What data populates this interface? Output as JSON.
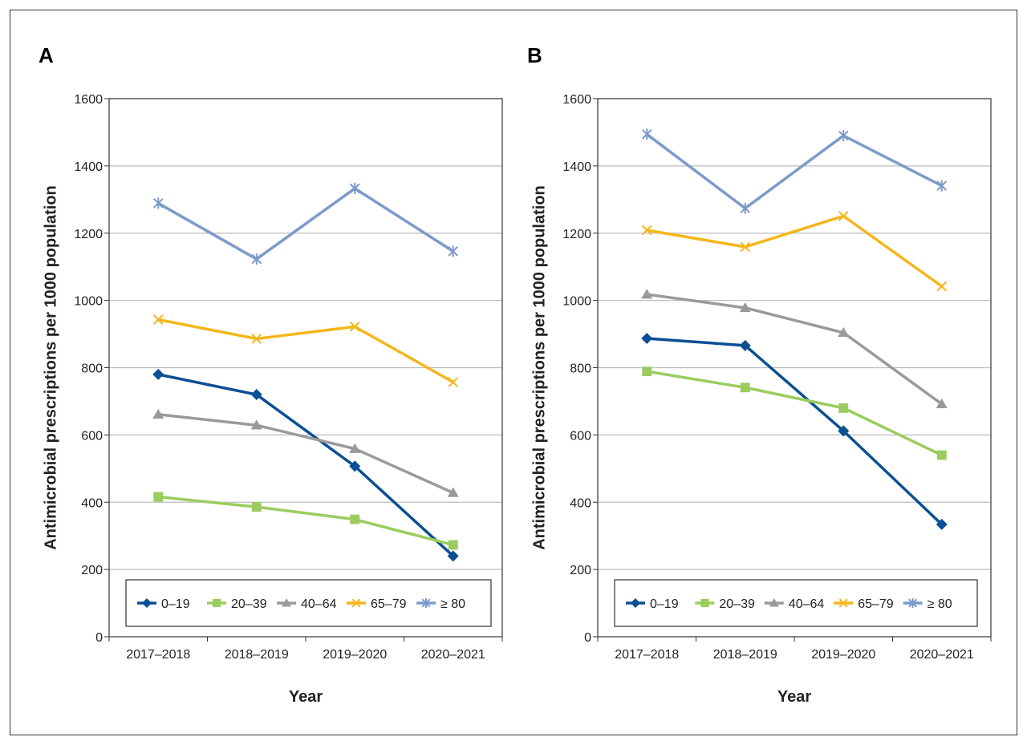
{
  "chart_data": [
    {
      "type": "line",
      "panel": "A",
      "categories": [
        "2017–2018",
        "2018–2019",
        "2019–2020",
        "2020–2021"
      ],
      "xlabel": "Year",
      "ylabel": "Antimicrobial prescriptions per 1000 population",
      "ylim": [
        0,
        1600
      ],
      "yticks": [
        0,
        200,
        400,
        600,
        800,
        1000,
        1200,
        1400,
        1600
      ],
      "grid": "horizontal",
      "legend": "bottom",
      "series": [
        {
          "name": "0–19",
          "color": "#0b4f94",
          "marker": "diamond",
          "values": [
            780,
            720,
            507,
            240
          ]
        },
        {
          "name": "20–39",
          "color": "#9bcc5e",
          "marker": "square",
          "values": [
            416,
            386,
            349,
            273
          ]
        },
        {
          "name": "40–64",
          "color": "#9a9a9a",
          "marker": "triangle",
          "values": [
            661,
            629,
            559,
            428
          ]
        },
        {
          "name": "65–79",
          "color": "#f4b61a",
          "marker": "x",
          "values": [
            943,
            886,
            922,
            757
          ]
        },
        {
          "name": "≥ 80",
          "color": "#7d9acb",
          "marker": "asterisk",
          "values": [
            1289,
            1123,
            1333,
            1146
          ]
        }
      ]
    },
    {
      "type": "line",
      "panel": "B",
      "categories": [
        "2017–2018",
        "2018–2019",
        "2019–2020",
        "2020–2021"
      ],
      "xlabel": "Year",
      "ylabel": "Antimicrobial prescriptions per 1000 population",
      "ylim": [
        0,
        1600
      ],
      "yticks": [
        0,
        200,
        400,
        600,
        800,
        1000,
        1200,
        1400,
        1600
      ],
      "grid": "horizontal",
      "legend": "bottom",
      "series": [
        {
          "name": "0–19",
          "color": "#0b4f94",
          "marker": "diamond",
          "values": [
            887,
            866,
            612,
            334
          ]
        },
        {
          "name": "20–39",
          "color": "#9bcc5e",
          "marker": "square",
          "values": [
            789,
            741,
            680,
            540
          ]
        },
        {
          "name": "40–64",
          "color": "#9a9a9a",
          "marker": "triangle",
          "values": [
            1018,
            978,
            904,
            692
          ]
        },
        {
          "name": "65–79",
          "color": "#f4b61a",
          "marker": "x",
          "values": [
            1209,
            1159,
            1251,
            1042
          ]
        },
        {
          "name": "≥ 80",
          "color": "#7d9acb",
          "marker": "asterisk",
          "values": [
            1494,
            1274,
            1490,
            1341
          ]
        }
      ]
    }
  ]
}
